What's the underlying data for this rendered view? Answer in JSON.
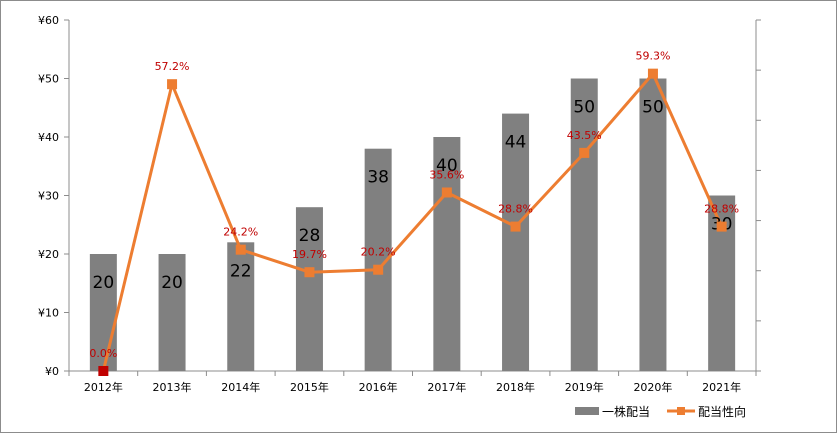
{
  "chart_data": {
    "type": "bar+line",
    "categories": [
      "2012年",
      "2013年",
      "2014年",
      "2015年",
      "2016年",
      "2017年",
      "2018年",
      "2019年",
      "2020年",
      "2021年"
    ],
    "series": [
      {
        "name": "一株配当",
        "type": "bar",
        "axis": "left",
        "values": [
          20,
          20,
          22,
          28,
          38,
          40,
          44,
          50,
          50,
          30
        ],
        "labels": [
          "20",
          "20",
          "22",
          "28",
          "38",
          "40",
          "44",
          "50",
          "50",
          "30"
        ],
        "color": "#808080"
      },
      {
        "name": "配当性向",
        "type": "line",
        "axis": "right",
        "values": [
          0.0,
          57.2,
          24.2,
          19.7,
          20.2,
          35.6,
          28.8,
          43.5,
          59.3,
          28.8
        ],
        "labels": [
          "0.0%",
          "57.2%",
          "24.2%",
          "19.7%",
          "20.2%",
          "35.6%",
          "28.8%",
          "43.5%",
          "59.3%",
          "28.8%"
        ],
        "color": "#ed7d31",
        "first_marker_color": "#c00000",
        "label_color": "#c00000"
      }
    ],
    "y_left": {
      "min": 0,
      "max": 60,
      "step": 10,
      "tick_labels": [
        "¥0",
        "¥10",
        "¥20",
        "¥30",
        "¥40",
        "¥50",
        "¥60"
      ]
    },
    "y_right": {
      "min": 0,
      "max": 70,
      "step": 10,
      "tick_labels_shown": false
    },
    "grid": false,
    "legend": "bottom-right"
  }
}
